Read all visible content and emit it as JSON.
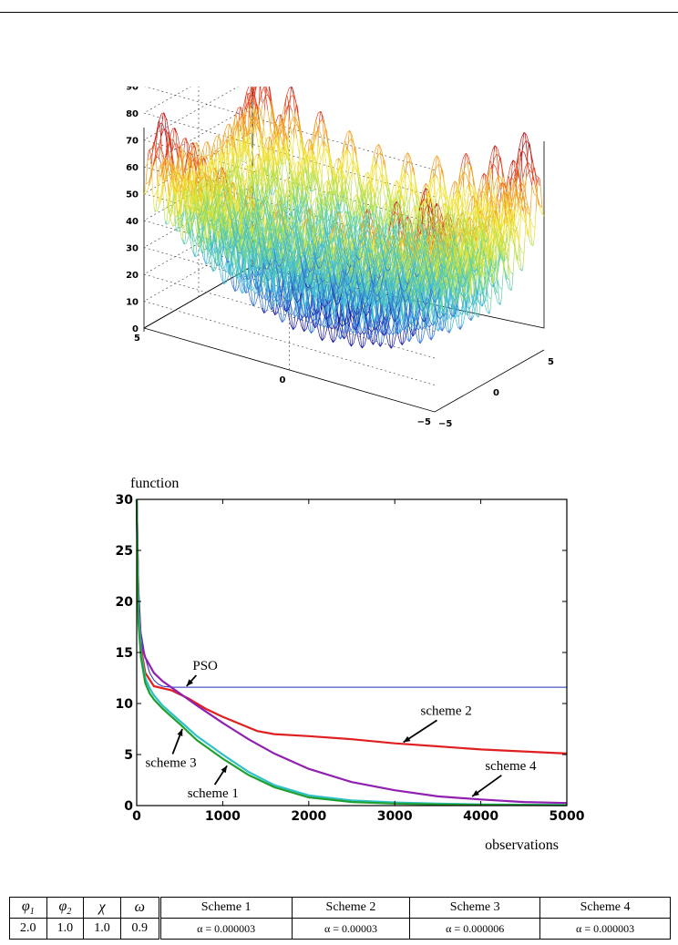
{
  "surface_plot": {
    "z_ticks": [
      "90",
      "80",
      "70",
      "60",
      "50",
      "40",
      "30",
      "20",
      "10",
      "0"
    ],
    "y_ticks": [
      "5",
      "0",
      "−5"
    ],
    "x_ticks": [
      "−5",
      "0",
      "5"
    ],
    "colormap": [
      "#1a1aa0",
      "#2f6fd0",
      "#3fb6d8",
      "#5fd0a8",
      "#b8e04a",
      "#f0e030",
      "#f0a020",
      "#e04020",
      "#c01010"
    ]
  },
  "chart_data": {
    "type": "line",
    "title": "",
    "ylabel": "function",
    "xlabel": "observations",
    "xlim": [
      0,
      5000
    ],
    "ylim": [
      0,
      30
    ],
    "xticks": [
      "0",
      "1000",
      "2000",
      "3000",
      "4000",
      "5000"
    ],
    "yticks": [
      "0",
      "5",
      "10",
      "15",
      "20",
      "25",
      "30"
    ],
    "grid": false,
    "series": [
      {
        "name": "PSO",
        "color": "#2030c0",
        "x": [
          0,
          20,
          50,
          100,
          150,
          200,
          250,
          300,
          400,
          500,
          1000,
          2000,
          3000,
          4000,
          5000
        ],
        "y": [
          30,
          22,
          17,
          14.5,
          13,
          12.3,
          11.9,
          11.7,
          11.6,
          11.6,
          11.6,
          11.6,
          11.6,
          11.6,
          11.6
        ]
      },
      {
        "name": "scheme 2",
        "color": "#e02020",
        "x": [
          0,
          20,
          50,
          100,
          200,
          400,
          600,
          800,
          1000,
          1200,
          1400,
          1600,
          2000,
          2500,
          3000,
          3500,
          4000,
          4500,
          5000
        ],
        "y": [
          30,
          20,
          15.5,
          13,
          11.7,
          11.3,
          10.5,
          9.5,
          8.7,
          8,
          7.3,
          7,
          6.8,
          6.5,
          6.1,
          5.8,
          5.5,
          5.3,
          5.1
        ]
      },
      {
        "name": "scheme 4",
        "color": "#9020b0",
        "x": [
          0,
          20,
          50,
          100,
          200,
          300,
          500,
          700,
          1000,
          1300,
          1600,
          2000,
          2500,
          3000,
          3500,
          4000,
          4500,
          5000
        ],
        "y": [
          30,
          20,
          16,
          14.5,
          13,
          12.2,
          11,
          9.8,
          8.1,
          6.5,
          5.1,
          3.6,
          2.3,
          1.5,
          0.9,
          0.6,
          0.35,
          0.25
        ]
      },
      {
        "name": "scheme 3",
        "color": "#30c0c8",
        "x": [
          0,
          20,
          50,
          100,
          150,
          200,
          300,
          500,
          700,
          1000,
          1300,
          1600,
          2000,
          2500,
          3000,
          3500,
          4000,
          4500,
          5000
        ],
        "y": [
          30,
          19,
          15,
          12.5,
          11.5,
          10.8,
          9.8,
          8.3,
          6.8,
          5,
          3.3,
          2,
          1,
          0.5,
          0.3,
          0.2,
          0.12,
          0.08,
          0.05
        ]
      },
      {
        "name": "scheme 1",
        "color": "#20a030",
        "x": [
          0,
          20,
          50,
          100,
          150,
          200,
          300,
          500,
          700,
          1000,
          1300,
          1600,
          2000,
          2500,
          3000,
          3500,
          4000,
          4500,
          5000
        ],
        "y": [
          30,
          18,
          14.5,
          12,
          11,
          10.4,
          9.5,
          8,
          6.4,
          4.6,
          3,
          1.8,
          0.8,
          0.35,
          0.2,
          0.12,
          0.08,
          0.05,
          0.03
        ]
      }
    ],
    "annotations": [
      {
        "text": "PSO",
        "at": [
          650,
          13.3
        ],
        "arrow_to": [
          580,
          11.7
        ]
      },
      {
        "text": "scheme 2",
        "at": [
          3300,
          8.9
        ],
        "arrow_to": [
          3100,
          6.2
        ]
      },
      {
        "text": "scheme 4",
        "at": [
          4050,
          3.5
        ],
        "arrow_to": [
          3900,
          0.9
        ]
      },
      {
        "text": "scheme 3",
        "at": [
          100,
          3.8
        ],
        "arrow_to": [
          530,
          7.5
        ]
      },
      {
        "text": "scheme 1",
        "at": [
          590,
          0.8
        ],
        "arrow_to": [
          1050,
          3.9
        ]
      }
    ]
  },
  "params_table": {
    "headers": [
      "φ1",
      "φ2",
      "χ",
      "ω",
      "Scheme 1",
      "Scheme 2",
      "Scheme 3",
      "Scheme 4"
    ],
    "values": [
      "2.0",
      "1.0",
      "1.0",
      "0.9",
      "α = 0.000003",
      "α = 0.00003",
      "α = 0.000006",
      "α = 0.000003"
    ]
  }
}
